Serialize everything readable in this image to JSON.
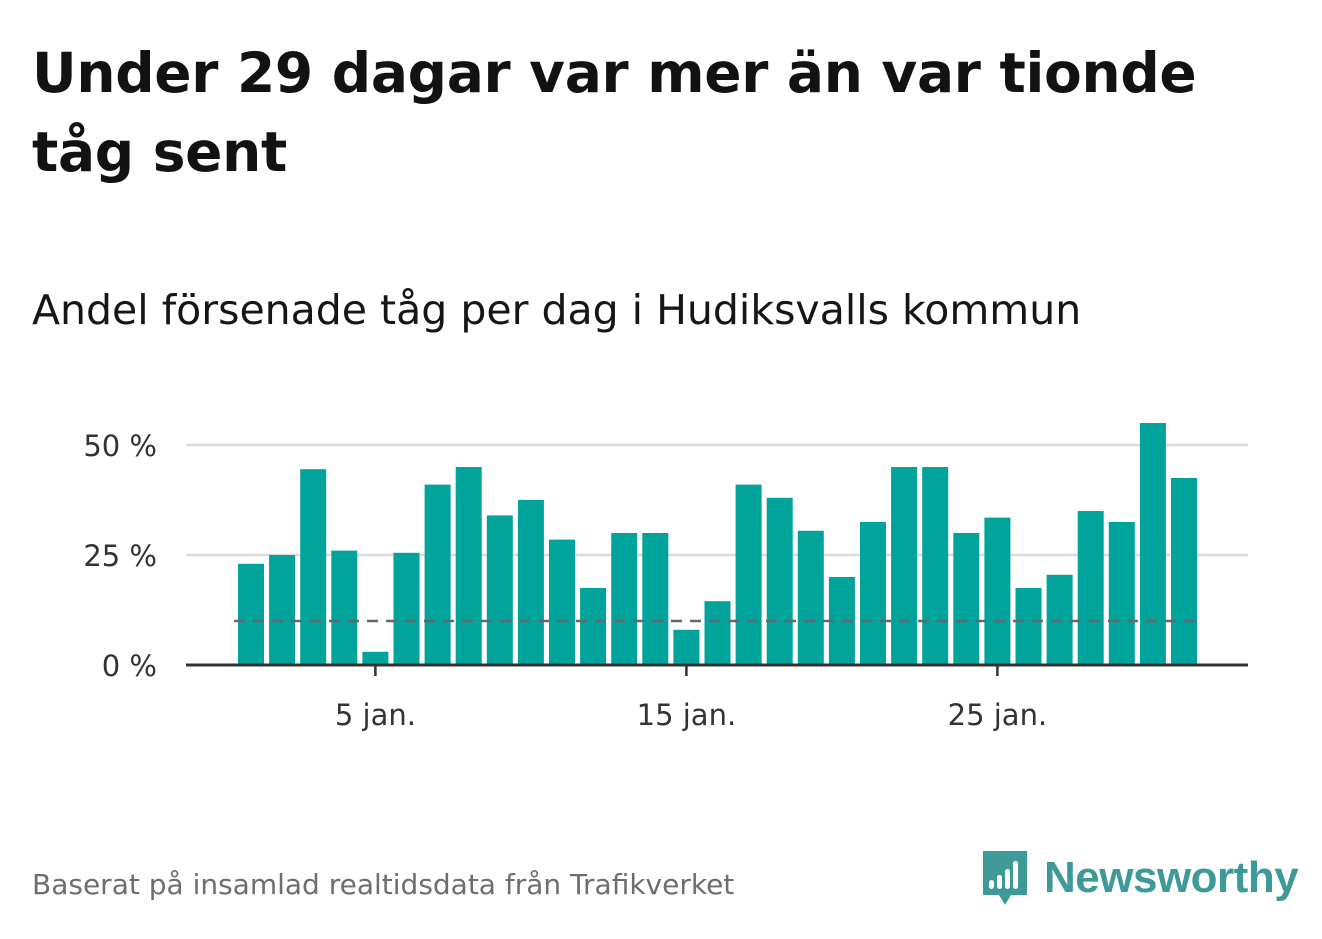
{
  "header": {
    "title": "Under 29 dagar var mer än var tionde tåg sent",
    "subtitle": "Andel försenade tåg per dag i Hudiksvalls kommun"
  },
  "footer": {
    "source": "Baserat på insamlad realtidsdata från Trafikverket",
    "brand": "Newsworthy"
  },
  "colors": {
    "bar": "#00a49a",
    "grid": "#dcdcdc",
    "axis": "#333333",
    "reference_line": "#666670",
    "brand": "#3e9a98"
  },
  "chart_data": {
    "type": "bar",
    "title": "Under 29 dagar var mer än var tionde tåg sent",
    "subtitle": "Andel försenade tåg per dag i Hudiksvalls kommun",
    "xlabel": "",
    "ylabel": "",
    "x_ticks": [
      {
        "day": 5,
        "label": "5 jan."
      },
      {
        "day": 15,
        "label": "15 jan."
      },
      {
        "day": 25,
        "label": "25 jan."
      }
    ],
    "y_ticks": [
      {
        "value": 0,
        "label": "0 %"
      },
      {
        "value": 25,
        "label": "25 %"
      },
      {
        "value": 50,
        "label": "50 %"
      }
    ],
    "ylim": [
      0,
      50
    ],
    "grid": true,
    "reference_line": {
      "value": 10,
      "style": "dashed"
    },
    "days": [
      1,
      2,
      3,
      4,
      5,
      6,
      7,
      8,
      9,
      10,
      11,
      12,
      13,
      14,
      15,
      16,
      17,
      18,
      19,
      20,
      21,
      22,
      23,
      24,
      25,
      26,
      27,
      28,
      29,
      30,
      31
    ],
    "values": [
      23,
      25,
      44.5,
      26,
      3,
      25.5,
      41,
      45,
      34,
      37.5,
      28.5,
      17.5,
      30,
      30,
      8,
      14.5,
      41,
      38,
      30.5,
      20,
      32.5,
      45,
      45,
      30,
      33.5,
      17.5,
      20.5,
      35,
      32.5,
      55,
      42.5
    ]
  }
}
